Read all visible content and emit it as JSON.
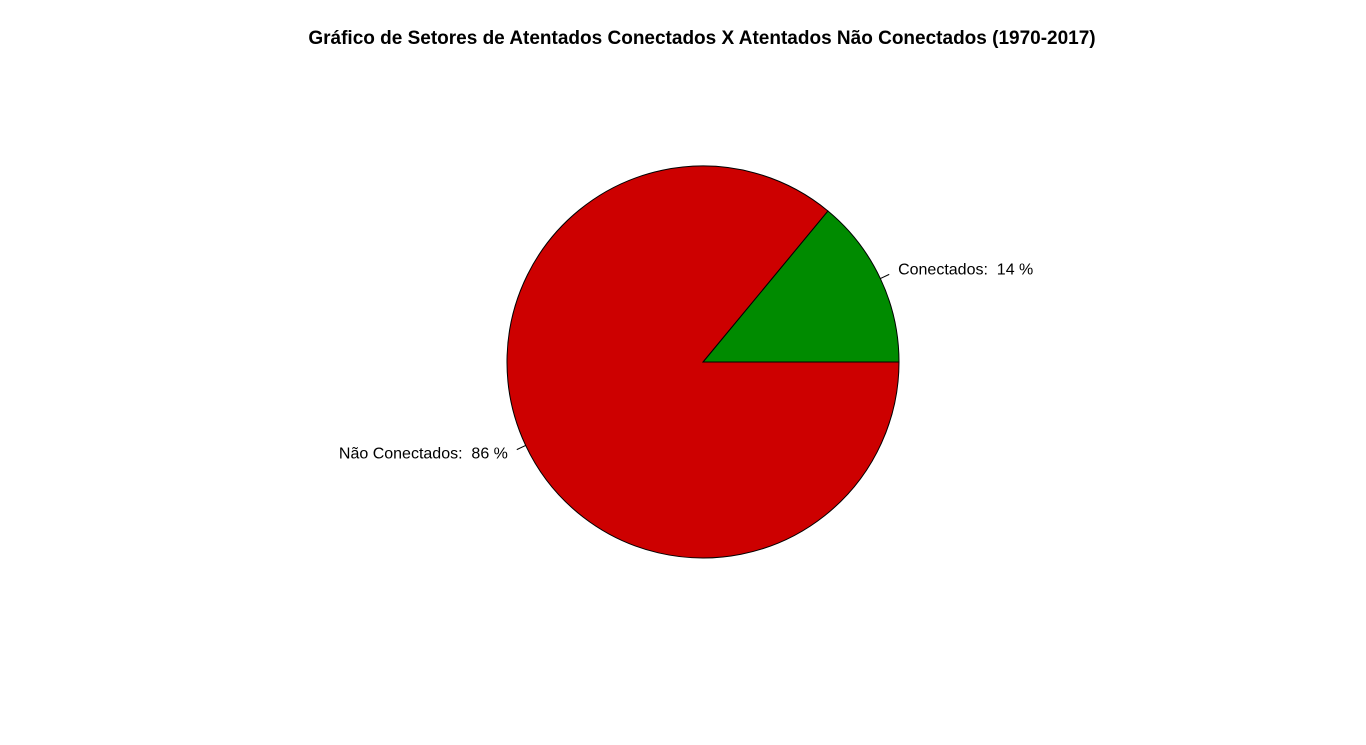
{
  "chart_data": {
    "type": "pie",
    "title": "Gráfico de Setores de Atentados Conectados X Atentados Não Conectados (1970-2017)",
    "slices": [
      {
        "label": "Conectados",
        "value": 14,
        "color": "#008B00"
      },
      {
        "label": "Não Conectados",
        "value": 86,
        "color": "#CD0000"
      }
    ],
    "label_format": "{label}:  {value} %",
    "direction": "counterclockwise",
    "start_angle_deg": 0,
    "legend": false
  }
}
